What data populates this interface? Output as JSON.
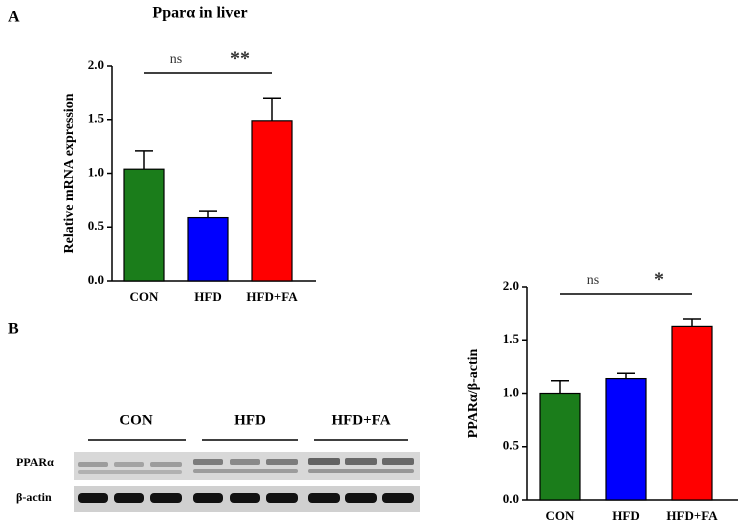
{
  "chart_data": [
    {
      "type": "bar",
      "title": "Pparα in liver",
      "y_label": "Relative mRNA expression",
      "categories": [
        "CON",
        "HFD",
        "HFD+FA"
      ],
      "values": [
        1.04,
        0.59,
        1.49
      ],
      "errors": [
        0.17,
        0.06,
        0.21
      ],
      "colors": [
        "#1b7d1b",
        "#0000ff",
        "#ff0000"
      ],
      "ylim": [
        0,
        2
      ],
      "yticks": [
        {
          "value": 0,
          "label": "0.0"
        },
        {
          "value": 0.5,
          "label": "0.5"
        },
        {
          "value": 1,
          "label": "1.0"
        },
        {
          "value": 1.5,
          "label": "1.5"
        },
        {
          "value": 2,
          "label": "2.0"
        }
      ],
      "annotations": [
        "ns",
        "**"
      ]
    },
    {
      "type": "bar",
      "y_label": "PPARα/β-actin",
      "categories": [
        "CON",
        "HFD",
        "HFD+FA"
      ],
      "values": [
        1.0,
        1.14,
        1.63
      ],
      "errors": [
        0.12,
        0.05,
        0.07
      ],
      "colors": [
        "#1b7d1b",
        "#0000ff",
        "#ff0000"
      ],
      "ylim": [
        0,
        2
      ],
      "yticks": [
        {
          "value": 0,
          "label": "0.0"
        },
        {
          "value": 0.5,
          "label": "0.5"
        },
        {
          "value": 1,
          "label": "1.0"
        },
        {
          "value": 1.5,
          "label": "1.5"
        },
        {
          "value": 2,
          "label": "2.0"
        }
      ],
      "annotations": [
        "ns",
        "*"
      ]
    }
  ],
  "panel_labels": [
    "A",
    "B"
  ],
  "blot": {
    "groups": [
      "CON",
      "HFD",
      "HFD+FA"
    ],
    "rows": [
      "PPARα",
      "β-actin"
    ]
  }
}
